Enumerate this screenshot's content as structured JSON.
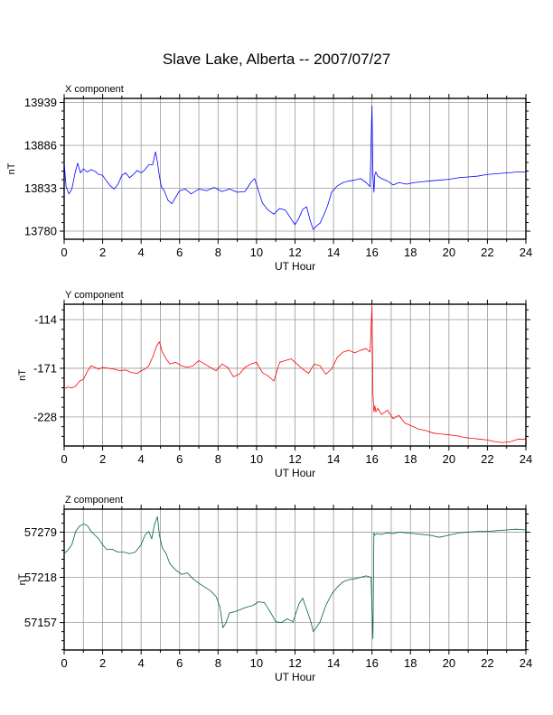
{
  "title": "Slave Lake, Alberta -- 2007/07/27",
  "chart_data": [
    {
      "type": "line",
      "title": "X component",
      "xlabel": "UT Hour",
      "ylabel": "nT",
      "xlim": [
        0,
        24
      ],
      "ylim": [
        13770,
        13944
      ],
      "xticks": [
        0,
        2,
        4,
        6,
        8,
        10,
        12,
        14,
        16,
        18,
        20,
        22,
        24
      ],
      "yticks": [
        13780,
        13833,
        13886,
        13939
      ],
      "grid": true,
      "color": "#0000ff",
      "series": [
        {
          "x": [
            0,
            0.1,
            0.25,
            0.4,
            0.55,
            0.7,
            0.85,
            1.0,
            1.2,
            1.4,
            1.6,
            1.8,
            2.0,
            2.2,
            2.4,
            2.6,
            2.8,
            3.0,
            3.2,
            3.4,
            3.6,
            3.8,
            4.0,
            4.2,
            4.4,
            4.6,
            4.75,
            4.85,
            4.95,
            5.05,
            5.2,
            5.4,
            5.6,
            5.8,
            6.0,
            6.3,
            6.6,
            7.0,
            7.4,
            7.8,
            8.2,
            8.6,
            9.0,
            9.4,
            9.7,
            9.9,
            10.1,
            10.3,
            10.6,
            10.9,
            11.2,
            11.5,
            11.8,
            12.0,
            12.2,
            12.4,
            12.6,
            12.8,
            12.95,
            13.1,
            13.3,
            13.5,
            13.7,
            13.9,
            14.2,
            14.5,
            14.8,
            15.1,
            15.4,
            15.7,
            15.9,
            16.0,
            16.05,
            16.1,
            16.15,
            16.2,
            16.3,
            16.5,
            16.8,
            17.1,
            17.4,
            17.8,
            18.2,
            18.6,
            19.0,
            19.5,
            20.0,
            20.5,
            21.0,
            21.5,
            22.0,
            22.5,
            23.0,
            23.5,
            24.0
          ],
          "y": [
            13865,
            13835,
            13826,
            13832,
            13850,
            13864,
            13852,
            13857,
            13853,
            13856,
            13854,
            13850,
            13849,
            13842,
            13836,
            13832,
            13838,
            13849,
            13852,
            13846,
            13850,
            13855,
            13852,
            13856,
            13862,
            13862,
            13878,
            13865,
            13848,
            13835,
            13830,
            13818,
            13814,
            13822,
            13830,
            13832,
            13826,
            13832,
            13830,
            13834,
            13829,
            13832,
            13828,
            13829,
            13840,
            13845,
            13830,
            13815,
            13806,
            13801,
            13808,
            13806,
            13795,
            13788,
            13796,
            13807,
            13810,
            13792,
            13782,
            13786,
            13790,
            13800,
            13812,
            13828,
            13836,
            13840,
            13842,
            13843,
            13845,
            13840,
            13835,
            13935,
            13850,
            13828,
            13850,
            13853,
            13848,
            13845,
            13842,
            13837,
            13840,
            13838,
            13840,
            13841,
            13842,
            13843,
            13844,
            13846,
            13847,
            13848,
            13850,
            13851,
            13852,
            13853,
            13853
          ]
        }
      ]
    },
    {
      "type": "line",
      "title": "Y component",
      "xlabel": "UT Hour",
      "ylabel": "nT",
      "xlim": [
        0,
        24
      ],
      "ylim": [
        -262,
        -96
      ],
      "xticks": [
        0,
        2,
        4,
        6,
        8,
        10,
        12,
        14,
        16,
        18,
        20,
        22,
        24
      ],
      "yticks": [
        -114,
        -171,
        -228
      ],
      "grid": true,
      "color": "#ff0000",
      "series": [
        {
          "x": [
            0,
            0.2,
            0.4,
            0.6,
            0.8,
            1.0,
            1.2,
            1.4,
            1.6,
            1.8,
            2.0,
            2.3,
            2.6,
            2.9,
            3.2,
            3.5,
            3.8,
            4.0,
            4.2,
            4.4,
            4.6,
            4.8,
            4.95,
            5.1,
            5.3,
            5.5,
            5.8,
            6.1,
            6.4,
            6.7,
            7.0,
            7.3,
            7.6,
            7.9,
            8.2,
            8.5,
            8.8,
            9.1,
            9.4,
            9.7,
            10.0,
            10.3,
            10.6,
            10.9,
            11.2,
            11.5,
            11.8,
            12.1,
            12.4,
            12.7,
            13.0,
            13.3,
            13.6,
            13.9,
            14.2,
            14.5,
            14.8,
            15.1,
            15.4,
            15.7,
            15.9,
            16.0,
            16.05,
            16.1,
            16.15,
            16.2,
            16.3,
            16.5,
            16.8,
            17.1,
            17.4,
            17.7,
            18.0,
            18.4,
            18.8,
            19.2,
            19.6,
            20.0,
            20.4,
            20.8,
            21.2,
            21.6,
            22.0,
            22.4,
            22.8,
            23.2,
            23.6,
            24.0
          ],
          "y": [
            -195,
            -193,
            -194,
            -192,
            -186,
            -184,
            -175,
            -168,
            -170,
            -172,
            -170,
            -171,
            -172,
            -174,
            -173,
            -176,
            -177,
            -174,
            -172,
            -168,
            -158,
            -145,
            -140,
            -152,
            -160,
            -166,
            -164,
            -168,
            -170,
            -168,
            -162,
            -166,
            -170,
            -174,
            -166,
            -170,
            -181,
            -178,
            -170,
            -166,
            -164,
            -176,
            -180,
            -186,
            -164,
            -162,
            -160,
            -166,
            -172,
            -177,
            -166,
            -168,
            -178,
            -172,
            -158,
            -152,
            -150,
            -153,
            -150,
            -148,
            -152,
            -98,
            -200,
            -222,
            -215,
            -222,
            -218,
            -225,
            -220,
            -230,
            -226,
            -235,
            -238,
            -242,
            -244,
            -247,
            -248,
            -249,
            -250,
            -252,
            -253,
            -254,
            -255,
            -257,
            -258,
            -257,
            -254,
            -254
          ]
        }
      ]
    },
    {
      "type": "line",
      "title": "Z component",
      "xlabel": "UT Hour",
      "ylabel": "nT",
      "xlim": [
        0,
        24
      ],
      "ylim": [
        57120,
        57310
      ],
      "xticks": [
        0,
        2,
        4,
        6,
        8,
        10,
        12,
        14,
        16,
        18,
        20,
        22,
        24
      ],
      "yticks": [
        57157,
        57218,
        57279
      ],
      "grid": true,
      "color": "#006633",
      "series": [
        {
          "x": [
            0,
            0.2,
            0.4,
            0.6,
            0.8,
            1.0,
            1.2,
            1.4,
            1.6,
            1.8,
            2.0,
            2.2,
            2.5,
            2.8,
            3.1,
            3.4,
            3.7,
            4.0,
            4.2,
            4.4,
            4.55,
            4.7,
            4.85,
            4.95,
            5.1,
            5.3,
            5.5,
            5.8,
            6.1,
            6.4,
            6.7,
            7.0,
            7.3,
            7.6,
            7.9,
            8.1,
            8.25,
            8.4,
            8.6,
            8.9,
            9.2,
            9.5,
            9.8,
            10.1,
            10.4,
            10.7,
            11.0,
            11.3,
            11.6,
            11.9,
            12.2,
            12.4,
            12.6,
            12.8,
            12.95,
            13.1,
            13.3,
            13.6,
            13.9,
            14.2,
            14.5,
            14.8,
            15.1,
            15.4,
            15.7,
            15.95,
            16.05,
            16.1,
            16.15,
            16.25,
            16.5,
            16.8,
            17.1,
            17.4,
            17.8,
            18.2,
            18.6,
            19.0,
            19.5,
            20.0,
            20.5,
            21.0,
            21.5,
            22.0,
            22.5,
            23.0,
            23.5,
            24.0
          ],
          "y": [
            57250,
            57255,
            57262,
            57280,
            57287,
            57290,
            57288,
            57280,
            57275,
            57270,
            57262,
            57256,
            57256,
            57252,
            57252,
            57250,
            57252,
            57262,
            57275,
            57280,
            57270,
            57290,
            57300,
            57275,
            57258,
            57250,
            57236,
            57228,
            57222,
            57224,
            57216,
            57210,
            57205,
            57200,
            57192,
            57178,
            57150,
            57156,
            57170,
            57172,
            57175,
            57178,
            57180,
            57185,
            57184,
            57172,
            57158,
            57157,
            57162,
            57158,
            57182,
            57190,
            57175,
            57160,
            57145,
            57150,
            57158,
            57180,
            57195,
            57205,
            57212,
            57215,
            57216,
            57218,
            57220,
            57218,
            57135,
            57278,
            57275,
            57277,
            57276,
            57278,
            57277,
            57279,
            57278,
            57277,
            57276,
            57275,
            57272,
            57275,
            57278,
            57279,
            57280,
            57280,
            57281,
            57282,
            57283,
            57282
          ]
        }
      ]
    }
  ]
}
